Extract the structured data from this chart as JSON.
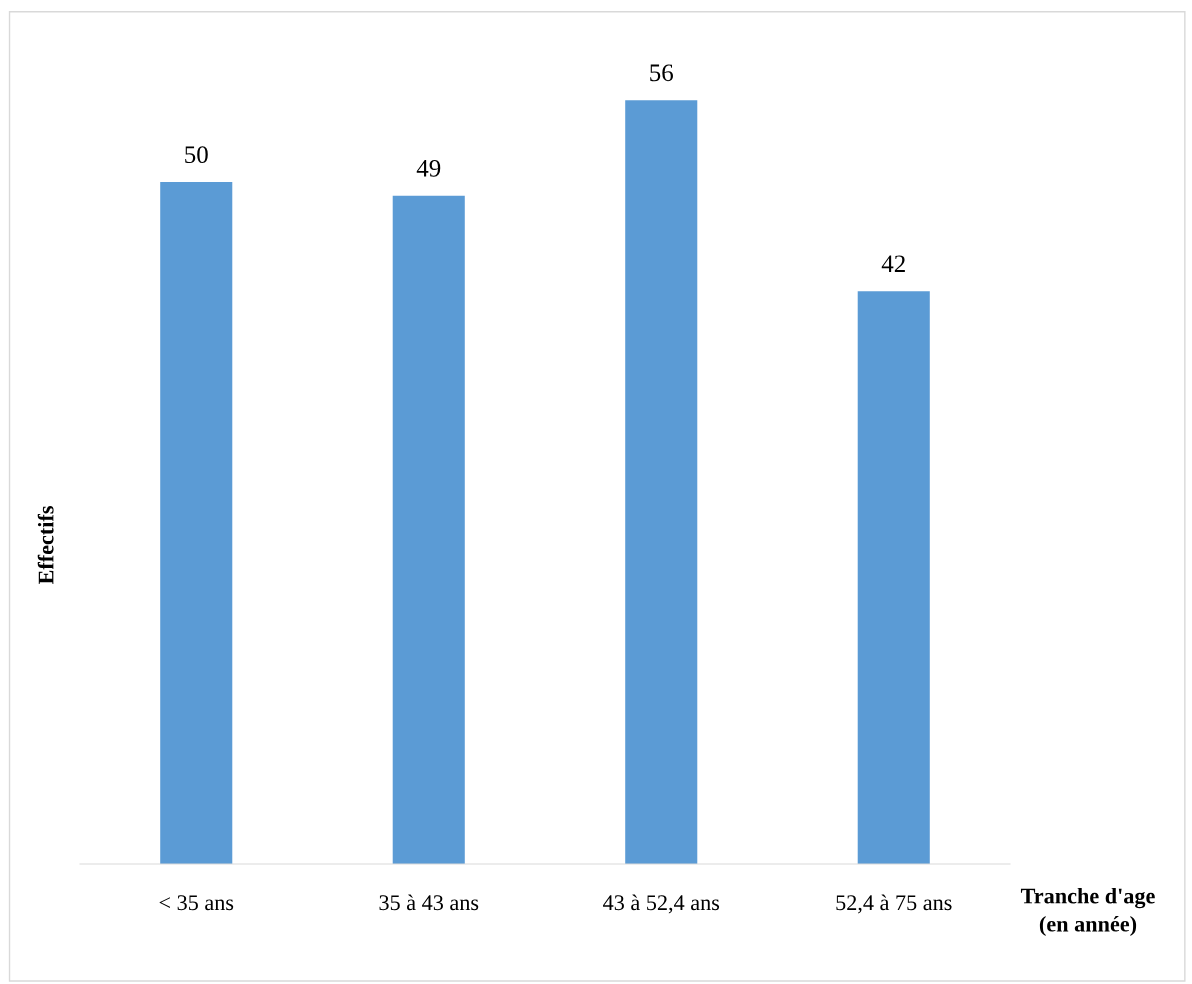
{
  "chart_data": {
    "type": "bar",
    "categories": [
      "< 35 ans",
      "35 à 43 ans",
      "43 à 52,4 ans",
      "52,4 à 75 ans"
    ],
    "values": [
      50,
      49,
      56,
      42
    ],
    "color": "#5b9bd5",
    "xlabel": "Tranche d'age\n(en année)",
    "ylabel": "Effectifs",
    "data_labels": true,
    "grid": false,
    "legend": false
  }
}
